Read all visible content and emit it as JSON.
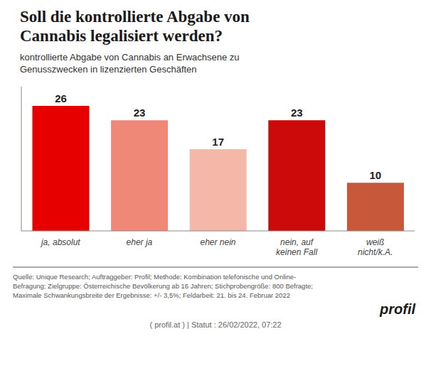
{
  "chart_data": {
    "type": "bar",
    "title": "Soll die kontrollierte Abgabe von\nCannabis legalisiert werden?",
    "subtitle": "kontrollierte Abgabe von Cannabis an Erwachsene zu\nGenusszwecken in lizenzierten Geschäften",
    "categories": [
      "ja, absolut",
      "eher ja",
      "eher nein",
      "nein, auf\nkeinen Fall",
      "weiß\nnicht/k.A."
    ],
    "values": [
      26,
      23,
      17,
      23,
      10
    ],
    "colors": [
      "#e60000",
      "#f08878",
      "#f5b8a8",
      "#cc0a0a",
      "#c8583a"
    ],
    "ylim": [
      0,
      30
    ],
    "grid": false,
    "data_labels": true,
    "tick_labels": "x",
    "annotations": [
      "Quelle: Unique Research; Auftraggeber: Profil; Methode: Kombination telefonische und Online-\nBefragung; Zielgruppe: Österreichische Bevölkerung ab 16 Jahren; Stichprobengröße: 800 Befragte;\nMaximale Schwankungsbreite der Ergebnisse: +/- 3,5%; Feldarbeit: 21. bis 24. Februar 2022",
      "profil",
      "( profil.at )  |  Statut : 26/02/2022, 07:22"
    ]
  }
}
